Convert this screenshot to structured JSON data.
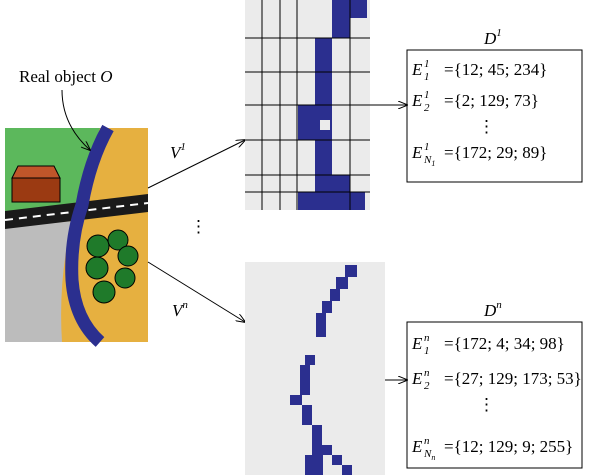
{
  "label": {
    "text": "Real object",
    "var": "O"
  },
  "views": [
    {
      "symbol": "V",
      "sup": "1"
    },
    {
      "symbol": "V",
      "sup": "n"
    }
  ],
  "descriptors": [
    {
      "symbol": "D",
      "sup": "1",
      "entries": [
        {
          "symbol": "E",
          "sup": "1",
          "sub": "1",
          "value": "={12; 45; 234}"
        },
        {
          "symbol": "E",
          "sup": "1",
          "sub": "2",
          "value": "={2; 129; 73}"
        },
        {
          "symbol": "E",
          "sup": "1",
          "sub": "N",
          "sub2": "1",
          "value": "={172; 29; 89}"
        }
      ]
    },
    {
      "symbol": "D",
      "sup": "n",
      "entries": [
        {
          "symbol": "E",
          "sup": "n",
          "sub": "1",
          "value": "={172; 4; 34; 98}"
        },
        {
          "symbol": "E",
          "sup": "n",
          "sub": "2",
          "value": "={27; 129; 173; 53}"
        },
        {
          "symbol": "E",
          "sup": "n",
          "sub": "N",
          "sub2": "n",
          "value": "={12; 129; 9; 255}"
        }
      ]
    }
  ]
}
